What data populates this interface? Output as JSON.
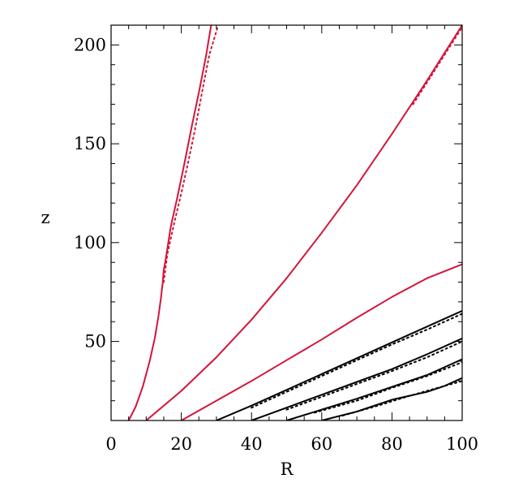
{
  "chart_data": {
    "type": "line",
    "title": "",
    "xlabel": "R",
    "ylabel": "z",
    "xlim": [
      0,
      100
    ],
    "ylim": [
      10,
      210
    ],
    "grid": false,
    "legend": "none",
    "x_ticks": [
      0,
      20,
      40,
      60,
      80,
      100
    ],
    "y_ticks": [
      50,
      100,
      150,
      200
    ],
    "x_tick_labels": [
      "0",
      "20",
      "40",
      "60",
      "80",
      "100"
    ],
    "y_tick_labels": [
      "50",
      "100",
      "150",
      "200"
    ],
    "colors": {
      "red": "#d4143a",
      "black": "#000000",
      "axes": "#000000"
    },
    "series": [
      {
        "color": "#d4143a",
        "style": "solid",
        "points": [
          [
            5,
            10
          ],
          [
            7,
            17
          ],
          [
            9,
            27
          ],
          [
            11,
            40
          ],
          [
            12.5,
            52
          ],
          [
            13.5,
            63
          ],
          [
            14.2,
            72
          ],
          [
            14.7,
            80
          ],
          [
            15,
            86
          ],
          [
            15.5,
            91
          ],
          [
            17,
            108
          ],
          [
            19,
            124
          ],
          [
            21,
            141
          ],
          [
            23,
            159
          ],
          [
            25,
            176
          ],
          [
            27,
            194
          ],
          [
            28.5,
            210
          ]
        ]
      },
      {
        "color": "#d4143a",
        "style": "dotted",
        "points": [
          [
            15,
            80
          ],
          [
            16,
            94
          ],
          [
            18,
            110
          ],
          [
            20,
            125
          ],
          [
            22,
            141
          ],
          [
            24,
            158
          ],
          [
            26,
            177
          ],
          [
            28,
            195
          ],
          [
            30.5,
            210
          ]
        ]
      },
      {
        "color": "#d4143a",
        "style": "solid",
        "points": [
          [
            10,
            10
          ],
          [
            20,
            25
          ],
          [
            30,
            42
          ],
          [
            40,
            61
          ],
          [
            50,
            82
          ],
          [
            60,
            105
          ],
          [
            70,
            129
          ],
          [
            80,
            155
          ],
          [
            90,
            182
          ],
          [
            100,
            210
          ]
        ]
      },
      {
        "color": "#d4143a",
        "style": "dotted",
        "points": [
          [
            86,
            170
          ],
          [
            90,
            181
          ],
          [
            95,
            195
          ],
          [
            100,
            209
          ]
        ]
      },
      {
        "color": "#d4143a",
        "style": "solid",
        "points": [
          [
            20,
            10
          ],
          [
            30,
            20
          ],
          [
            40,
            30
          ],
          [
            50,
            40.5
          ],
          [
            60,
            51
          ],
          [
            70,
            62
          ],
          [
            80,
            72.5
          ],
          [
            90,
            82
          ],
          [
            100,
            89
          ]
        ]
      },
      {
        "color": "#000000",
        "style": "solid",
        "points": [
          [
            30,
            10
          ],
          [
            40,
            17.5
          ],
          [
            50,
            25.5
          ],
          [
            60,
            33.5
          ],
          [
            70,
            41.5
          ],
          [
            80,
            49.5
          ],
          [
            90,
            57.5
          ],
          [
            100,
            65.5
          ]
        ]
      },
      {
        "color": "#000000",
        "style": "dotted",
        "points": [
          [
            40,
            16.5
          ],
          [
            50,
            24.5
          ],
          [
            60,
            32.5
          ],
          [
            70,
            40.5
          ],
          [
            80,
            48.5
          ],
          [
            90,
            56
          ],
          [
            100,
            64
          ]
        ]
      },
      {
        "color": "#000000",
        "style": "solid",
        "points": [
          [
            40,
            10
          ],
          [
            50,
            16.5
          ],
          [
            60,
            23
          ],
          [
            70,
            29.5
          ],
          [
            80,
            36
          ],
          [
            90,
            43.5
          ],
          [
            100,
            51.5
          ]
        ]
      },
      {
        "color": "#000000",
        "style": "dotted",
        "points": [
          [
            50,
            15.5
          ],
          [
            60,
            22
          ],
          [
            70,
            28.5
          ],
          [
            80,
            35
          ],
          [
            90,
            42
          ],
          [
            100,
            50
          ]
        ]
      },
      {
        "color": "#000000",
        "style": "solid",
        "points": [
          [
            50,
            10
          ],
          [
            60,
            15.5
          ],
          [
            70,
            21
          ],
          [
            80,
            27
          ],
          [
            90,
            33
          ],
          [
            100,
            41
          ]
        ]
      },
      {
        "color": "#000000",
        "style": "dotted",
        "points": [
          [
            58,
            14
          ],
          [
            70,
            20
          ],
          [
            80,
            26.5
          ],
          [
            90,
            32.5
          ],
          [
            100,
            39.5
          ]
        ]
      },
      {
        "color": "#000000",
        "style": "solid",
        "points": [
          [
            60,
            10
          ],
          [
            70,
            14.5
          ],
          [
            80,
            20.5
          ],
          [
            90,
            24.5
          ],
          [
            95,
            27.5
          ],
          [
            100,
            31.5
          ]
        ]
      },
      {
        "color": "#000000",
        "style": "dotted",
        "points": [
          [
            66,
            12.5
          ],
          [
            75,
            17
          ],
          [
            85,
            22.5
          ],
          [
            92,
            26
          ],
          [
            100,
            30
          ]
        ]
      }
    ]
  }
}
